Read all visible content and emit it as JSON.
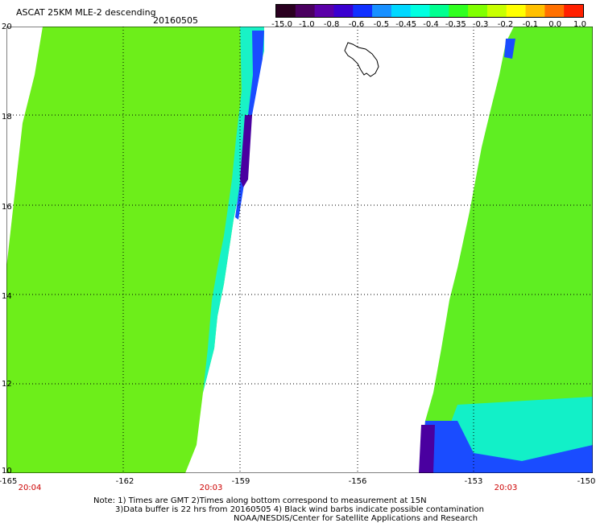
{
  "title": "ASCAT 25KM MLE-2 descending",
  "date": "20160505",
  "colorbar": {
    "colors": [
      "#2a0020",
      "#4a0060",
      "#5a00a8",
      "#3a00d0",
      "#1030ff",
      "#1890ff",
      "#00d8ff",
      "#00ffe0",
      "#00ff90",
      "#30ff20",
      "#80ff00",
      "#c8ff00",
      "#ffff00",
      "#ffc000",
      "#ff7000",
      "#ff2000"
    ],
    "tick_labels": [
      "-15.0",
      "-1.0",
      "-0.8",
      "-0.6",
      "-0.5",
      "-0.45",
      "-0.4",
      "-0.35",
      "-0.3",
      "-0.2",
      "-0.1",
      "0.0",
      "1.0"
    ]
  },
  "map": {
    "lat_labels": [
      "20",
      "18",
      "16",
      "14",
      "12",
      "10"
    ],
    "lon_labels": [
      "-165",
      "-162",
      "-159",
      "-156",
      "-153",
      "-150"
    ],
    "time_labels": [
      "20:04",
      "20:03",
      "20:03"
    ],
    "lat_range": [
      10,
      20
    ],
    "lon_range": [
      -165,
      -150
    ]
  },
  "notes": {
    "line1": "Note: 1) Times are GMT 2)Times along bottom correspond to measurement at 15N",
    "line2": "3)Data buffer is 22 hrs from 20160505 4) Black wind barbs indicate possible contamination",
    "line3": "NOAA/NESDIS/Center for Satellite Applications and Research"
  }
}
